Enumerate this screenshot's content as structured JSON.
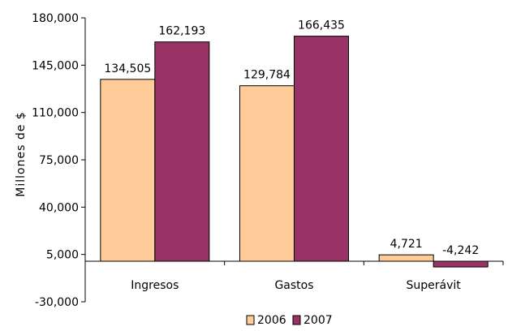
{
  "chart_data": {
    "type": "bar",
    "title": "",
    "xlabel": "",
    "ylabel": "Millones de $",
    "categories": [
      "Ingresos",
      "Gastos",
      "Superávit"
    ],
    "series": [
      {
        "name": "2006",
        "values": [
          134505,
          129784,
          4721
        ],
        "color": "#FFCC99"
      },
      {
        "name": "2007",
        "values": [
          162193,
          166435,
          -4242
        ],
        "color": "#993366"
      }
    ],
    "data_labels": [
      [
        "134,505",
        "129,784",
        "4,721"
      ],
      [
        "162,193",
        "166,435",
        "-4,242"
      ]
    ],
    "ylim": [
      -30000,
      180000
    ],
    "yticks": [
      -30000,
      5000,
      40000,
      75000,
      110000,
      145000,
      180000
    ],
    "ytick_labels": [
      "-30,000",
      "5,000",
      "40,000",
      "75,000",
      "110,000",
      "145,000",
      "180,000"
    ],
    "grid": false,
    "legend_position": "bottom"
  }
}
